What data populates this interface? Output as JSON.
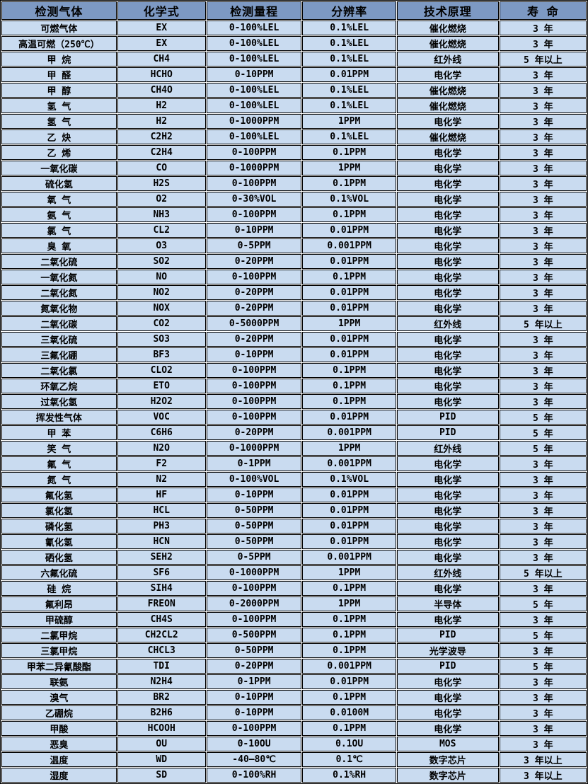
{
  "colors": {
    "header_bg": "#7d99c3",
    "row_bg": "#c9dbf0",
    "border": "#000000",
    "text": "#000000",
    "gap": "#ffffff"
  },
  "table": {
    "columns": [
      {
        "key": "gas",
        "label": "检测气体"
      },
      {
        "key": "formula",
        "label": "化学式"
      },
      {
        "key": "range",
        "label": "检测量程"
      },
      {
        "key": "resolution",
        "label": "分辨率"
      },
      {
        "key": "principle",
        "label": "技术原理"
      },
      {
        "key": "life",
        "label": "寿 命"
      }
    ],
    "rows": [
      {
        "gas": "可燃气体",
        "formula": "EX",
        "range": "0-100%LEL",
        "resolution": "0.1%LEL",
        "principle": "催化燃烧",
        "life": "3 年"
      },
      {
        "gas": "高温可燃（250℃）",
        "formula": "EX",
        "range": "0-100%LEL",
        "resolution": "0.1%LEL",
        "principle": "催化燃烧",
        "life": "3 年"
      },
      {
        "gas": "甲 烷",
        "formula": "CH4",
        "range": "0-100%LEL",
        "resolution": "0.1%LEL",
        "principle": "红外线",
        "life": "5 年以上"
      },
      {
        "gas": "甲 醛",
        "formula": "HCHO",
        "range": "0-10PPM",
        "resolution": "0.01PPM",
        "principle": "电化学",
        "life": "3 年"
      },
      {
        "gas": "甲 醇",
        "formula": "CH4O",
        "range": "0-100%LEL",
        "resolution": "0.1%LEL",
        "principle": "催化燃烧",
        "life": "3 年"
      },
      {
        "gas": "氢 气",
        "formula": "H2",
        "range": "0-100%LEL",
        "resolution": "0.1%LEL",
        "principle": "催化燃烧",
        "life": "3 年"
      },
      {
        "gas": "氢 气",
        "formula": "H2",
        "range": "0-1000PPM",
        "resolution": "1PPM",
        "principle": "电化学",
        "life": "3 年"
      },
      {
        "gas": "乙 炔",
        "formula": "C2H2",
        "range": "0-100%LEL",
        "resolution": "0.1%LEL",
        "principle": "催化燃烧",
        "life": "3 年"
      },
      {
        "gas": "乙 烯",
        "formula": "C2H4",
        "range": "0-100PPM",
        "resolution": "0.1PPM",
        "principle": "电化学",
        "life": "3 年"
      },
      {
        "gas": "一氧化碳",
        "formula": "CO",
        "range": "0-1000PPM",
        "resolution": "1PPM",
        "principle": "电化学",
        "life": "3 年"
      },
      {
        "gas": "硫化氢",
        "formula": "H2S",
        "range": "0-100PPM",
        "resolution": "0.1PPM",
        "principle": "电化学",
        "life": "3 年"
      },
      {
        "gas": "氧 气",
        "formula": "O2",
        "range": "0-30%VOL",
        "resolution": "0.1%VOL",
        "principle": "电化学",
        "life": "3 年"
      },
      {
        "gas": "氨 气",
        "formula": "NH3",
        "range": "0-100PPM",
        "resolution": "0.1PPM",
        "principle": "电化学",
        "life": "3 年"
      },
      {
        "gas": "氯 气",
        "formula": "CL2",
        "range": "0-10PPM",
        "resolution": "0.01PPM",
        "principle": "电化学",
        "life": "3 年"
      },
      {
        "gas": "臭 氧",
        "formula": "O3",
        "range": "0-5PPM",
        "resolution": "0.001PPM",
        "principle": "电化学",
        "life": "3 年"
      },
      {
        "gas": "二氧化硫",
        "formula": "SO2",
        "range": "0-20PPM",
        "resolution": "0.01PPM",
        "principle": "电化学",
        "life": "3 年"
      },
      {
        "gas": "一氧化氮",
        "formula": "NO",
        "range": "0-100PPM",
        "resolution": "0.1PPM",
        "principle": "电化学",
        "life": "3 年"
      },
      {
        "gas": "二氧化氮",
        "formula": "NO2",
        "range": "0-20PPM",
        "resolution": "0.01PPM",
        "principle": "电化学",
        "life": "3 年"
      },
      {
        "gas": "氮氧化物",
        "formula": "NOX",
        "range": "0-20PPM",
        "resolution": "0.01PPM",
        "principle": "电化学",
        "life": "3 年"
      },
      {
        "gas": "二氧化碳",
        "formula": "CO2",
        "range": "0-5000PPM",
        "resolution": "1PPM",
        "principle": "红外线",
        "life": "5 年以上"
      },
      {
        "gas": "三氧化硫",
        "formula": "SO3",
        "range": "0-20PPM",
        "resolution": "0.01PPM",
        "principle": "电化学",
        "life": "3 年"
      },
      {
        "gas": "三氟化硼",
        "formula": "BF3",
        "range": "0-10PPM",
        "resolution": "0.01PPM",
        "principle": "电化学",
        "life": "3 年"
      },
      {
        "gas": "二氧化氯",
        "formula": "CLO2",
        "range": "0-100PPM",
        "resolution": "0.1PPM",
        "principle": "电化学",
        "life": "3 年"
      },
      {
        "gas": "环氧乙烷",
        "formula": "ETO",
        "range": "0-100PPM",
        "resolution": "0.1PPM",
        "principle": "电化学",
        "life": "3 年"
      },
      {
        "gas": "过氧化氢",
        "formula": "H2O2",
        "range": "0-100PPM",
        "resolution": "0.1PPM",
        "principle": "电化学",
        "life": "3 年"
      },
      {
        "gas": "挥发性气体",
        "formula": "VOC",
        "range": "0-100PPM",
        "resolution": "0.01PPM",
        "principle": "PID",
        "life": "5 年"
      },
      {
        "gas": "甲 苯",
        "formula": "C6H6",
        "range": "0-20PPM",
        "resolution": "0.001PPM",
        "principle": "PID",
        "life": "5 年"
      },
      {
        "gas": "笑 气",
        "formula": "N2O",
        "range": "0-1000PPM",
        "resolution": "1PPM",
        "principle": "红外线",
        "life": "5 年"
      },
      {
        "gas": "氟 气",
        "formula": "F2",
        "range": "0-1PPM",
        "resolution": "0.001PPM",
        "principle": "电化学",
        "life": "3 年"
      },
      {
        "gas": "氮 气",
        "formula": "N2",
        "range": "0-100%VOL",
        "resolution": "0.1%VOL",
        "principle": "电化学",
        "life": "3 年"
      },
      {
        "gas": "氟化氢",
        "formula": "HF",
        "range": "0-10PPM",
        "resolution": "0.01PPM",
        "principle": "电化学",
        "life": "3 年"
      },
      {
        "gas": "氯化氢",
        "formula": "HCL",
        "range": "0-50PPM",
        "resolution": "0.01PPM",
        "principle": "电化学",
        "life": "3 年"
      },
      {
        "gas": "磷化氢",
        "formula": "PH3",
        "range": "0-50PPM",
        "resolution": "0.01PPM",
        "principle": "电化学",
        "life": "3 年"
      },
      {
        "gas": "氰化氢",
        "formula": "HCN",
        "range": "0-50PPM",
        "resolution": "0.01PPM",
        "principle": "电化学",
        "life": "3 年"
      },
      {
        "gas": "硒化氢",
        "formula": "SEH2",
        "range": "0-5PPM",
        "resolution": "0.001PPM",
        "principle": "电化学",
        "life": "3 年"
      },
      {
        "gas": "六氟化硫",
        "formula": "SF6",
        "range": "0-1000PPM",
        "resolution": "1PPM",
        "principle": "红外线",
        "life": "5 年以上"
      },
      {
        "gas": "硅 烷",
        "formula": "SIH4",
        "range": "0-100PPM",
        "resolution": "0.1PPM",
        "principle": "电化学",
        "life": "3 年"
      },
      {
        "gas": "氟利昂",
        "formula": "FREON",
        "range": "0-2000PPM",
        "resolution": "1PPM",
        "principle": "半导体",
        "life": "5 年"
      },
      {
        "gas": "甲硫醇",
        "formula": "CH4S",
        "range": "0-100PPM",
        "resolution": "0.1PPM",
        "principle": "电化学",
        "life": "3 年"
      },
      {
        "gas": "二氯甲烷",
        "formula": "CH2CL2",
        "range": "0-500PPM",
        "resolution": "0.1PPM",
        "principle": "PID",
        "life": "5 年"
      },
      {
        "gas": "三氯甲烷",
        "formula": "CHCL3",
        "range": "0-50PPM",
        "resolution": "0.1PPM",
        "principle": "光学波导",
        "life": "3 年"
      },
      {
        "gas": "甲苯二异氰酸酯",
        "formula": "TDI",
        "range": "0-20PPM",
        "resolution": "0.001PPM",
        "principle": "PID",
        "life": "5 年"
      },
      {
        "gas": "联氨",
        "formula": "N2H4",
        "range": "0-1PPM",
        "resolution": "0.01PPM",
        "principle": "电化学",
        "life": "3 年"
      },
      {
        "gas": "溴气",
        "formula": "BR2",
        "range": "0-10PPM",
        "resolution": "0.1PPM",
        "principle": "电化学",
        "life": "3 年"
      },
      {
        "gas": "乙硼烷",
        "formula": "B2H6",
        "range": "0-10PPM",
        "resolution": "0.0100M",
        "principle": "电化学",
        "life": "3 年"
      },
      {
        "gas": "甲酸",
        "formula": "HCOOH",
        "range": "0-100PPM",
        "resolution": "0.1PPM",
        "principle": "电化学",
        "life": "3 年"
      },
      {
        "gas": "恶臭",
        "formula": "OU",
        "range": "0-10OU",
        "resolution": "0.1OU",
        "principle": "MOS",
        "life": "3 年"
      },
      {
        "gas": "温度",
        "formula": "WD",
        "range": "-40—80℃",
        "resolution": "0.1℃",
        "principle": "数字芯片",
        "life": "3 年以上"
      },
      {
        "gas": "湿度",
        "formula": "SD",
        "range": "0-100%RH",
        "resolution": "0.1%RH",
        "principle": "数字芯片",
        "life": "3 年以上"
      }
    ]
  }
}
